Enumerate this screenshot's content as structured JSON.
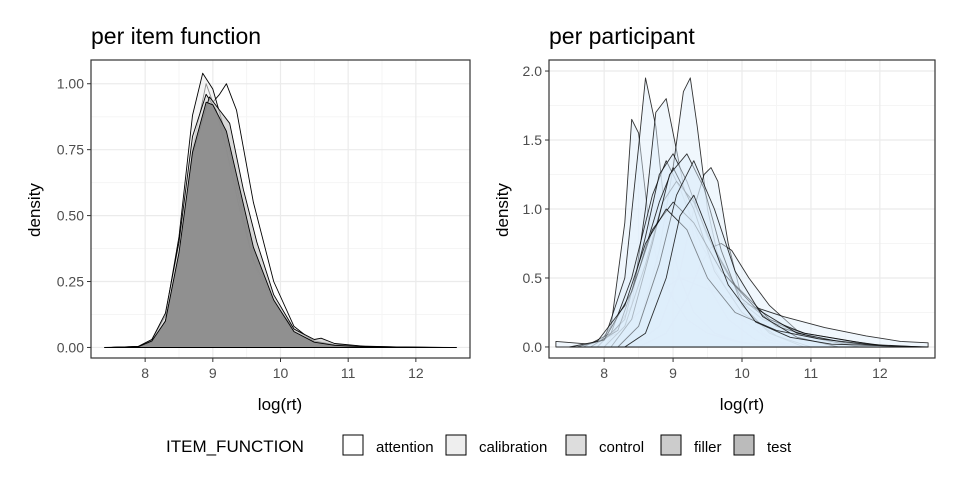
{
  "colors": {
    "panel_bg": "#ffffff",
    "grid_major": "#ebebeb",
    "grid_minor": "#f5f5f5",
    "border": "#333333",
    "tick_text": "#4d4d4d",
    "participant_fill": "#ddeefb",
    "legend_fills": [
      "#ffffff",
      "#eeeeee",
      "#dddddd",
      "#cccccc",
      "#bbbbbb"
    ]
  },
  "chart_data": [
    {
      "type": "area",
      "title": "per item function",
      "xlabel": "log(rt)",
      "ylabel": "density",
      "xlim": [
        7.2,
        12.8
      ],
      "ylim": [
        -0.04,
        1.09
      ],
      "xticks": [
        8,
        9,
        10,
        11,
        12
      ],
      "xtick_labels": [
        "8",
        "9",
        "10",
        "11",
        "12"
      ],
      "yticks": [
        0,
        0.25,
        0.5,
        0.75,
        1.0
      ],
      "ytick_labels": [
        "0.00",
        "0.25",
        "0.50",
        "0.75",
        "1.00"
      ],
      "grid": true,
      "legend_position": "bottom",
      "series": [
        {
          "name": "attention",
          "fill": "#ffffff",
          "opacity": 0.3,
          "x": [
            7.4,
            7.9,
            8.1,
            8.3,
            8.5,
            8.7,
            8.9,
            9.0,
            9.1,
            9.2,
            9.35,
            9.6,
            9.9,
            10.2,
            10.5,
            10.8,
            11.2,
            12.0,
            12.6
          ],
          "y": [
            0,
            0.003,
            0.02,
            0.08,
            0.3,
            0.75,
            1.0,
            0.93,
            0.96,
            1.0,
            0.9,
            0.55,
            0.25,
            0.08,
            0.02,
            0.01,
            0.005,
            0,
            0
          ]
        },
        {
          "name": "calibration",
          "fill": "#eeeeee",
          "opacity": 0.6,
          "x": [
            7.5,
            7.9,
            8.1,
            8.3,
            8.5,
            8.7,
            8.85,
            9.0,
            9.2,
            9.4,
            9.6,
            9.9,
            10.2,
            10.5,
            10.8,
            11.2,
            11.7,
            12.3
          ],
          "y": [
            0,
            0.004,
            0.03,
            0.12,
            0.42,
            0.88,
            1.04,
            0.98,
            0.8,
            0.55,
            0.32,
            0.15,
            0.06,
            0.02,
            0.01,
            0.004,
            0,
            0
          ]
        },
        {
          "name": "control",
          "fill": "#dddddd",
          "opacity": 0.7,
          "x": [
            7.5,
            7.9,
            8.1,
            8.3,
            8.5,
            8.7,
            8.9,
            9.05,
            9.2,
            9.4,
            9.6,
            9.9,
            10.2,
            10.5,
            10.8,
            11.2,
            12.2
          ],
          "y": [
            0,
            0.004,
            0.03,
            0.13,
            0.4,
            0.8,
            0.96,
            0.9,
            0.75,
            0.52,
            0.33,
            0.17,
            0.07,
            0.025,
            0.01,
            0.004,
            0
          ]
        },
        {
          "name": "filler",
          "fill": "#cccccc",
          "opacity": 0.75,
          "x": [
            7.5,
            7.9,
            8.1,
            8.3,
            8.5,
            8.7,
            8.95,
            9.1,
            9.25,
            9.45,
            9.65,
            9.9,
            10.2,
            10.5,
            10.6,
            10.8,
            11.3,
            12.4
          ],
          "y": [
            0,
            0.003,
            0.02,
            0.1,
            0.35,
            0.73,
            0.95,
            0.9,
            0.85,
            0.6,
            0.4,
            0.2,
            0.07,
            0.03,
            0.035,
            0.015,
            0.003,
            0
          ]
        },
        {
          "name": "test",
          "fill": "#8c8c8c",
          "opacity": 0.95,
          "x": [
            7.5,
            7.9,
            8.1,
            8.3,
            8.5,
            8.7,
            8.9,
            9.0,
            9.2,
            9.4,
            9.6,
            9.9,
            10.2,
            10.5,
            10.8,
            11.3,
            12.5
          ],
          "y": [
            0,
            0.003,
            0.025,
            0.1,
            0.36,
            0.74,
            0.93,
            0.92,
            0.82,
            0.6,
            0.38,
            0.18,
            0.06,
            0.02,
            0.008,
            0.002,
            0
          ]
        }
      ]
    },
    {
      "type": "area",
      "title": "per participant",
      "xlabel": "log(rt)",
      "ylabel": "density",
      "xlim": [
        7.2,
        12.8
      ],
      "ylim": [
        -0.08,
        2.08
      ],
      "xticks": [
        8,
        9,
        10,
        11,
        12
      ],
      "xtick_labels": [
        "8",
        "9",
        "10",
        "11",
        "12"
      ],
      "yticks": [
        0,
        0.5,
        1.0,
        1.5,
        2.0
      ],
      "ytick_labels": [
        "0.0",
        "0.5",
        "1.0",
        "1.5",
        "2.0"
      ],
      "grid": true,
      "series": [
        {
          "x": [
            7.9,
            8.1,
            8.3,
            8.4,
            8.5,
            8.65,
            8.8,
            9.0,
            9.2,
            9.5,
            9.9,
            10.4,
            11.0
          ],
          "y": [
            0,
            0.15,
            0.9,
            1.65,
            1.55,
            0.9,
            0.55,
            0.35,
            0.2,
            0.1,
            0.04,
            0.01,
            0
          ]
        },
        {
          "x": [
            7.6,
            8.0,
            8.3,
            8.5,
            8.6,
            8.75,
            8.9,
            9.1,
            9.3,
            9.6,
            10.0,
            10.5
          ],
          "y": [
            0,
            0.05,
            0.5,
            1.45,
            1.95,
            1.6,
            0.9,
            0.5,
            0.25,
            0.1,
            0.03,
            0
          ]
        },
        {
          "x": [
            8.0,
            8.4,
            8.6,
            8.75,
            8.9,
            9.0,
            9.1,
            9.3,
            9.5,
            9.8,
            10.2,
            10.8
          ],
          "y": [
            0,
            0.3,
            1.0,
            1.7,
            1.8,
            1.55,
            1.3,
            0.8,
            0.45,
            0.2,
            0.05,
            0
          ]
        },
        {
          "x": [
            8.2,
            8.5,
            8.8,
            9.0,
            9.15,
            9.25,
            9.35,
            9.5,
            9.7,
            10.0,
            10.4,
            10.9
          ],
          "y": [
            0,
            0.15,
            0.7,
            1.3,
            1.85,
            1.95,
            1.6,
            1.0,
            0.55,
            0.2,
            0.05,
            0
          ]
        },
        {
          "x": [
            8.4,
            8.8,
            9.1,
            9.3,
            9.45,
            9.55,
            9.65,
            9.8,
            10.0,
            10.3,
            10.7
          ],
          "y": [
            0,
            0.15,
            0.55,
            1.0,
            1.25,
            1.3,
            1.2,
            0.75,
            0.35,
            0.1,
            0
          ]
        },
        {
          "x": [
            8.5,
            8.9,
            9.2,
            9.4,
            9.55,
            9.7,
            9.85,
            10.1,
            10.4,
            10.8,
            11.3,
            11.8
          ],
          "y": [
            0,
            0.1,
            0.35,
            0.6,
            0.72,
            0.75,
            0.7,
            0.5,
            0.3,
            0.12,
            0.03,
            0
          ]
        },
        {
          "x": [
            7.3,
            7.8,
            8.2,
            8.5,
            8.8,
            9.1,
            9.5,
            10.0,
            10.6,
            11.2,
            11.8,
            12.3,
            12.7
          ],
          "y": [
            0.04,
            0.02,
            0.1,
            0.25,
            0.4,
            0.5,
            0.42,
            0.32,
            0.22,
            0.14,
            0.08,
            0.04,
            0.03
          ]
        },
        {
          "x": [
            7.7,
            8.1,
            8.4,
            8.7,
            8.9,
            9.1,
            9.4,
            9.8,
            10.3,
            10.9,
            11.5,
            12.1
          ],
          "y": [
            0,
            0.1,
            0.5,
            1.1,
            1.35,
            1.15,
            0.75,
            0.4,
            0.2,
            0.1,
            0.05,
            0
          ]
        },
        {
          "x": [
            7.9,
            8.3,
            8.6,
            8.8,
            9.0,
            9.2,
            9.5,
            9.9,
            10.4,
            10.9,
            11.6,
            12.2
          ],
          "y": [
            0,
            0.2,
            0.8,
            1.25,
            1.4,
            1.2,
            0.8,
            0.45,
            0.2,
            0.1,
            0.04,
            0
          ]
        },
        {
          "x": [
            8.0,
            8.3,
            8.6,
            8.85,
            9.05,
            9.3,
            9.6,
            10.0,
            10.5,
            11.1,
            11.7
          ],
          "y": [
            0,
            0.15,
            0.6,
            1.05,
            1.2,
            1.05,
            0.7,
            0.35,
            0.15,
            0.06,
            0
          ]
        },
        {
          "x": [
            7.8,
            8.2,
            8.5,
            8.8,
            9.0,
            9.3,
            9.6,
            10.0,
            10.5,
            11.0
          ],
          "y": [
            0,
            0.12,
            0.55,
            1.05,
            1.3,
            1.0,
            0.55,
            0.25,
            0.08,
            0
          ]
        },
        {
          "x": [
            8.1,
            8.4,
            8.7,
            8.95,
            9.2,
            9.45,
            9.7,
            10.0,
            10.4,
            10.9
          ],
          "y": [
            0,
            0.2,
            0.75,
            1.25,
            1.4,
            1.15,
            0.7,
            0.3,
            0.1,
            0
          ]
        },
        {
          "x": [
            7.6,
            8.0,
            8.4,
            8.7,
            9.0,
            9.3,
            9.7,
            10.2,
            10.8,
            11.5,
            12.2
          ],
          "y": [
            0,
            0.05,
            0.4,
            0.85,
            1.05,
            0.9,
            0.55,
            0.28,
            0.1,
            0.03,
            0
          ]
        },
        {
          "x": [
            8.2,
            8.5,
            8.8,
            9.05,
            9.3,
            9.6,
            9.9,
            10.3,
            10.8,
            11.4
          ],
          "y": [
            0,
            0.15,
            0.6,
            1.1,
            1.35,
            1.0,
            0.55,
            0.22,
            0.07,
            0
          ]
        },
        {
          "x": [
            7.5,
            7.9,
            8.3,
            8.6,
            8.9,
            9.2,
            9.5,
            9.9,
            10.5,
            11.1,
            11.8,
            12.6
          ],
          "y": [
            0,
            0.04,
            0.3,
            0.75,
            1.0,
            0.85,
            0.5,
            0.25,
            0.12,
            0.06,
            0.02,
            0
          ]
        },
        {
          "x": [
            8.3,
            8.6,
            8.9,
            9.1,
            9.3,
            9.5,
            9.8,
            10.2,
            10.7,
            11.3,
            12.0,
            12.7
          ],
          "y": [
            0,
            0.1,
            0.5,
            0.95,
            1.1,
            0.85,
            0.45,
            0.18,
            0.07,
            0.02,
            0.01,
            0
          ]
        }
      ]
    }
  ],
  "legend": {
    "title": "ITEM_FUNCTION",
    "items": [
      "attention",
      "calibration",
      "control",
      "filler",
      "test"
    ]
  }
}
